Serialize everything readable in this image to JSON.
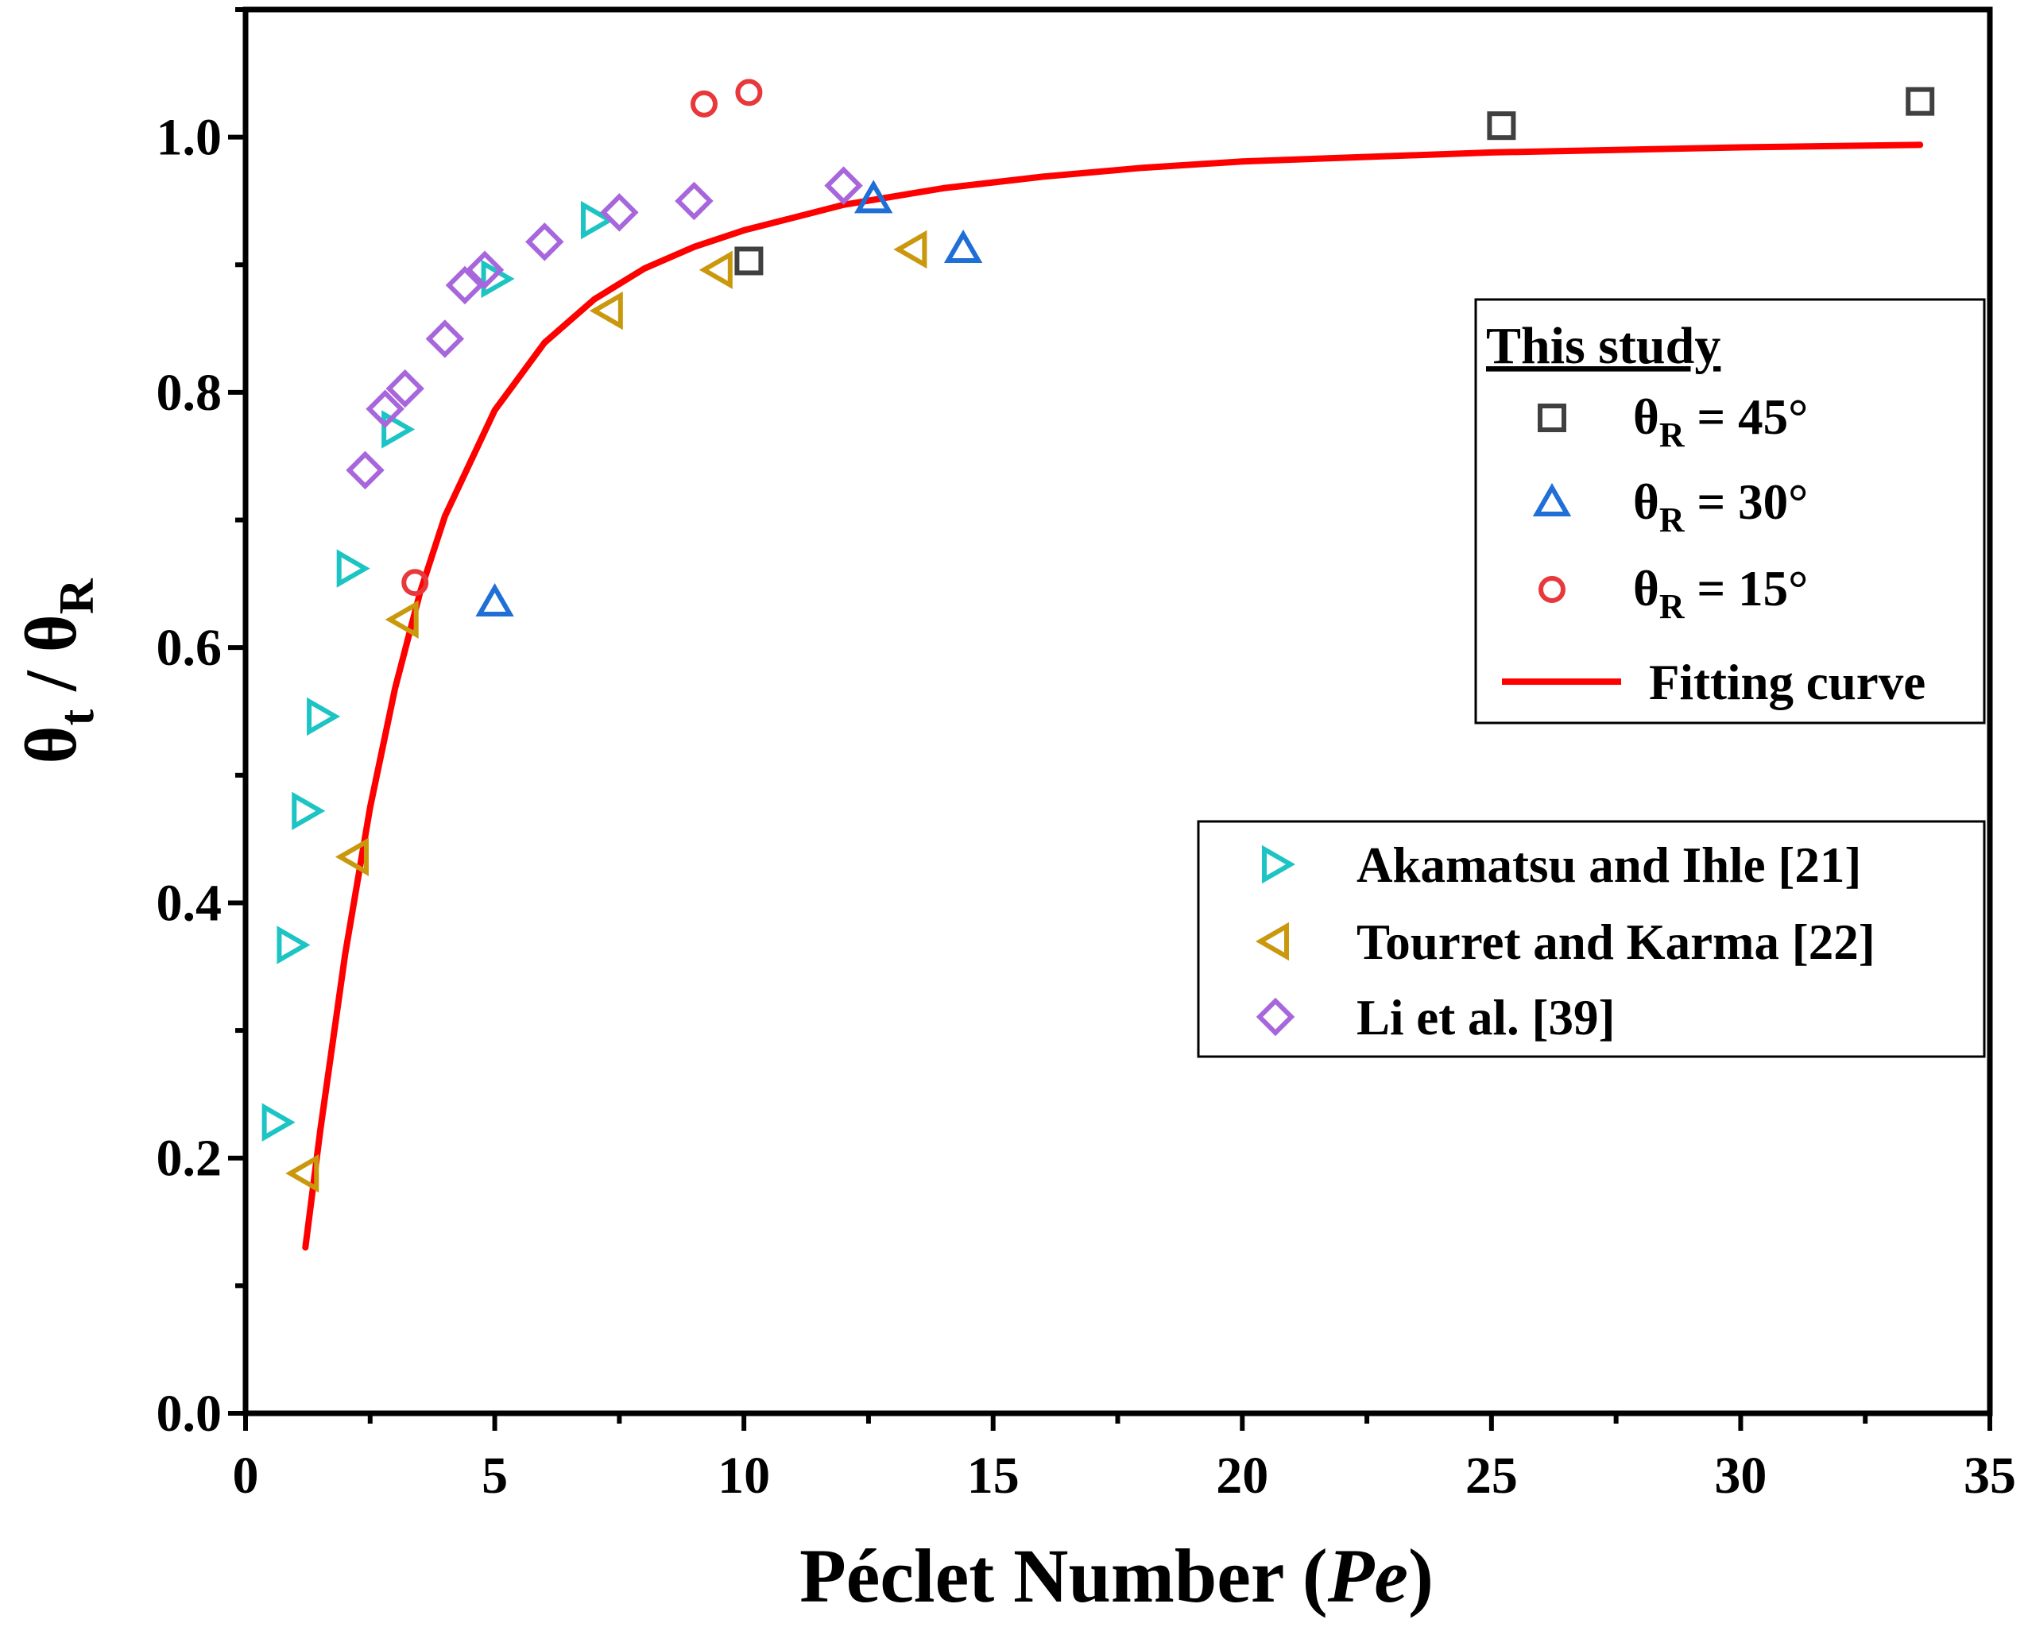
{
  "chart_data": {
    "type": "scatter",
    "xlabel_main": "Péclet Number (",
    "xlabel_italic": "Pe",
    "xlabel_close": ")",
    "ylabel": {
      "theta1": "θ",
      "sub1": "t",
      "slash": " / ",
      "theta2": "θ",
      "sub2": "R"
    },
    "xlim": [
      0,
      35
    ],
    "ylim": [
      0,
      1.1
    ],
    "x_ticks": [
      0,
      5,
      10,
      15,
      20,
      25,
      30,
      35
    ],
    "x_tick_labels": [
      "0",
      "5",
      "10",
      "15",
      "20",
      "25",
      "30",
      "35"
    ],
    "y_ticks": [
      0.0,
      0.2,
      0.4,
      0.6,
      0.8,
      1.0
    ],
    "y_tick_labels": [
      "0.0",
      "0.2",
      "0.4",
      "0.6",
      "0.8",
      "1.0"
    ],
    "legend_this_study_title": "This study",
    "series": [
      {
        "name": "θR = 45°",
        "label_theta": "θ",
        "label_sub": "R",
        "label_rest": " = 45°",
        "marker": "square",
        "color": "#404040",
        "x": [
          10.1,
          25.2,
          33.6
        ],
        "y": [
          0.903,
          1.009,
          1.028
        ]
      },
      {
        "name": "θR = 30°",
        "label_theta": "θ",
        "label_sub": "R",
        "label_rest": " = 30°",
        "marker": "triangle-up",
        "color": "#1f6fd6",
        "x": [
          5.0,
          12.6,
          14.4
        ],
        "y": [
          0.635,
          0.951,
          0.912
        ]
      },
      {
        "name": "θR = 15°",
        "label_theta": "θ",
        "label_sub": "R",
        "label_rest": " = 15°",
        "marker": "circle",
        "color": "#e8383c",
        "x": [
          3.4,
          9.2,
          10.1
        ],
        "y": [
          0.651,
          1.026,
          1.035
        ]
      },
      {
        "name": "Akamatsu and Ihle [21]",
        "marker": "triangle-right",
        "color": "#1dc4c4",
        "x": [
          0.6,
          0.9,
          1.2,
          1.5,
          2.1,
          3.0,
          5.0,
          7.0
        ],
        "y": [
          0.228,
          0.367,
          0.472,
          0.546,
          0.662,
          0.771,
          0.889,
          0.935
        ]
      },
      {
        "name": "Tourret and Karma [22]",
        "marker": "triangle-left",
        "color": "#c9980c",
        "x": [
          1.2,
          2.2,
          3.2,
          7.3,
          9.5,
          13.4
        ],
        "y": [
          0.188,
          0.436,
          0.622,
          0.864,
          0.896,
          0.912
        ]
      },
      {
        "name": "Li et al. [39]",
        "marker": "diamond",
        "color": "#a866dd",
        "x": [
          2.4,
          2.8,
          3.2,
          4.0,
          4.4,
          4.8,
          6.0,
          7.5,
          9.0,
          12.0
        ],
        "y": [
          0.739,
          0.787,
          0.803,
          0.842,
          0.884,
          0.896,
          0.918,
          0.941,
          0.95,
          0.962
        ]
      }
    ],
    "fit": {
      "name": "Fitting curve",
      "color": "#ff0000",
      "x": [
        1.2,
        1.5,
        2.0,
        2.5,
        3.0,
        3.5,
        4.0,
        5.0,
        6.0,
        7.0,
        8.0,
        9.0,
        10.0,
        12.0,
        14.0,
        16.0,
        18.0,
        20.0,
        25.0,
        30.0,
        33.6
      ],
      "y": [
        0.13,
        0.222,
        0.36,
        0.475,
        0.568,
        0.643,
        0.703,
        0.786,
        0.839,
        0.873,
        0.897,
        0.914,
        0.927,
        0.947,
        0.96,
        0.969,
        0.976,
        0.981,
        0.988,
        0.992,
        0.994
      ]
    }
  }
}
